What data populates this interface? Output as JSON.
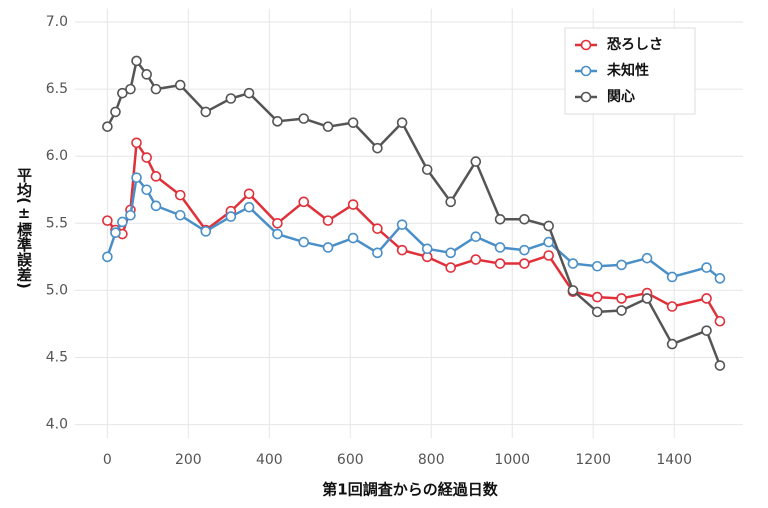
{
  "chart_data": {
    "type": "line",
    "x_label": "第1回調査からの経過日数",
    "y_label": "平均(±標準誤差)",
    "x": [
      0,
      20,
      37,
      57,
      72,
      97,
      120,
      180,
      243,
      305,
      350,
      420,
      485,
      545,
      607,
      667,
      728,
      790,
      848,
      910,
      970,
      1030,
      1090,
      1150,
      1210,
      1270,
      1333,
      1395,
      1480,
      1513
    ],
    "series": [
      {
        "name": "恐ろしさ",
        "color": "#e0303a",
        "values": [
          5.52,
          5.45,
          5.42,
          5.6,
          6.1,
          5.99,
          5.85,
          5.71,
          5.45,
          5.59,
          5.72,
          5.5,
          5.66,
          5.52,
          5.64,
          5.46,
          5.3,
          5.25,
          5.17,
          5.23,
          5.2,
          5.2,
          5.26,
          4.99,
          4.95,
          4.94,
          4.98,
          4.88,
          4.94,
          4.77
        ]
      },
      {
        "name": "未知性",
        "color": "#4a8fc8",
        "values": [
          5.25,
          5.43,
          5.51,
          5.56,
          5.84,
          5.75,
          5.63,
          5.56,
          5.44,
          5.55,
          5.62,
          5.42,
          5.36,
          5.32,
          5.39,
          5.28,
          5.49,
          5.31,
          5.28,
          5.4,
          5.32,
          5.3,
          5.36,
          5.2,
          5.18,
          5.19,
          5.24,
          5.1,
          5.17,
          5.09
        ]
      },
      {
        "name": "関心",
        "color": "#555555",
        "values": [
          6.22,
          6.33,
          6.47,
          6.5,
          6.71,
          6.61,
          6.5,
          6.53,
          6.33,
          6.43,
          6.47,
          6.26,
          6.28,
          6.22,
          6.25,
          6.06,
          6.25,
          5.9,
          5.66,
          5.96,
          5.53,
          5.53,
          5.48,
          5.0,
          4.84,
          4.85,
          4.94,
          4.6,
          4.7,
          4.44
        ]
      }
    ],
    "xlim": [
      -80,
      1570
    ],
    "ylim": [
      3.9,
      7.1
    ],
    "xticks": [
      0,
      200,
      400,
      600,
      800,
      1000,
      1200,
      1400
    ],
    "yticks": [
      {
        "value": 4,
        "label": "4.0"
      },
      4.5,
      {
        "value": 5,
        "label": "5.0"
      },
      5.5,
      {
        "value": 6,
        "label": "6.0"
      },
      6.5,
      {
        "value": 7,
        "label": "7.0"
      }
    ],
    "grid": true,
    "legend": "upper right"
  }
}
